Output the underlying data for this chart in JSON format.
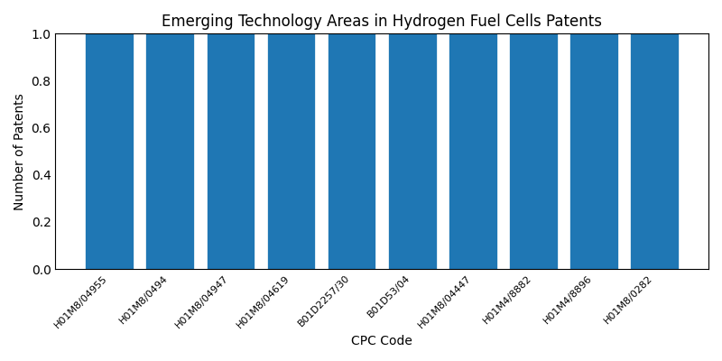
{
  "title": "Emerging Technology Areas in Hydrogen Fuel Cells Patents",
  "xlabel": "CPC Code",
  "ylabel": "Number of Patents",
  "categories": [
    "H01M8/04955",
    "H01M8/0494",
    "H01M8/04947",
    "H01M8/04619",
    "B01D2257/30",
    "B01D53/04",
    "H01M8/04447",
    "H01M4/8882",
    "H01M4/8896",
    "H01M8/0282"
  ],
  "values": [
    1,
    1,
    1,
    1,
    1,
    1,
    1,
    1,
    1,
    1
  ],
  "bar_color": "#1f77b4",
  "bar_width": 0.8,
  "ylim": [
    0,
    1.0
  ],
  "yticks": [
    0.0,
    0.2,
    0.4,
    0.6,
    0.8,
    1.0
  ],
  "figsize": [
    8.0,
    4.0
  ],
  "dpi": 100,
  "tick_fontsize": 8,
  "label_fontsize": 10,
  "title_fontsize": 12
}
